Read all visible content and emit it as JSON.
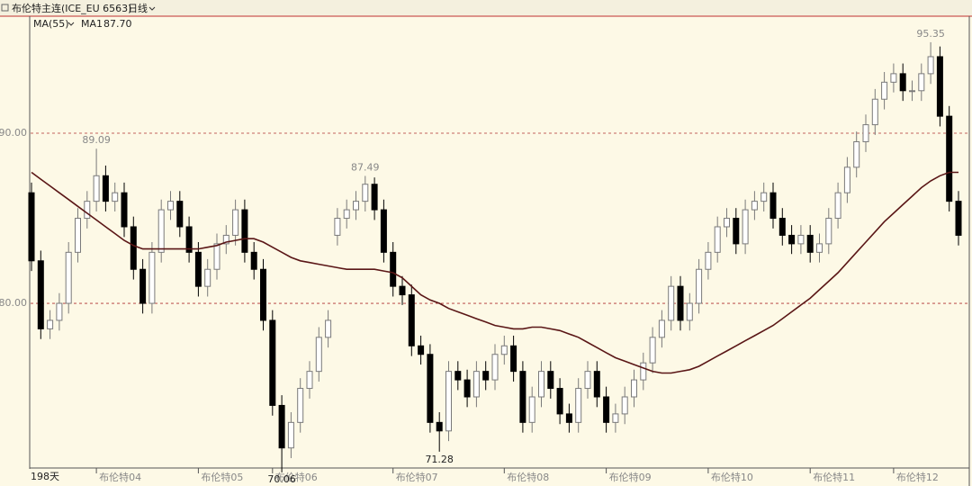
{
  "header": {
    "title": "布伦特主连(ICE_EU 6563)",
    "period": "日线"
  },
  "chart_data": {
    "type": "candlestick",
    "indicator": "MA(55)",
    "days_label": "198天",
    "up_color": "#ffffff",
    "up_edge": "#7a7a7a",
    "down_color": "#000000",
    "categories": [
      null,
      null,
      null,
      null,
      null,
      null,
      null,
      "布伦特04",
      null,
      null,
      null,
      null,
      null,
      null,
      null,
      null,
      null,
      null,
      "布伦特05",
      null,
      null,
      null,
      null,
      null,
      null,
      null,
      "布伦特06",
      null,
      null,
      null,
      null,
      null,
      null,
      null,
      null,
      null,
      null,
      null,
      null,
      "布伦特07",
      null,
      null,
      null,
      null,
      null,
      null,
      null,
      null,
      null,
      null,
      null,
      "布伦特08",
      null,
      null,
      null,
      null,
      null,
      null,
      null,
      null,
      null,
      null,
      "布伦特09",
      null,
      null,
      null,
      null,
      null,
      null,
      null,
      null,
      null,
      null,
      "布伦特10",
      null,
      null,
      null,
      null,
      null,
      null,
      null,
      null,
      null,
      null,
      "布伦特11",
      null,
      null,
      null,
      null,
      null,
      null,
      null,
      null,
      "布伦特12",
      null,
      null,
      null,
      null,
      null,
      null,
      null
    ],
    "open": [
      86.5,
      82.5,
      78.5,
      79,
      80,
      83,
      85,
      86,
      87.5,
      86,
      86.5,
      84.5,
      82,
      80,
      83,
      85.5,
      86,
      84.5,
      83,
      81,
      82,
      83.5,
      84,
      85.5,
      83,
      82,
      79,
      74,
      71.5,
      73,
      75,
      76,
      78,
      84,
      85,
      85.5,
      86,
      87,
      85.5,
      83,
      81,
      80.5,
      77.5,
      77,
      73,
      72.5,
      76,
      75.5,
      74.5,
      76,
      75.5,
      77,
      77.5,
      76,
      73,
      74.5,
      76,
      75,
      73.5,
      73,
      75,
      76,
      74.5,
      73,
      73.5,
      74.5,
      75.5,
      76.5,
      78,
      79,
      81,
      79,
      80,
      82,
      83,
      84.5,
      85,
      83.5,
      85.5,
      86,
      86.5,
      85,
      84,
      83.5,
      84,
      83,
      83.5,
      85,
      86.5,
      88,
      89.5,
      90.5,
      92,
      93,
      93.5,
      92.5,
      92.5,
      93.5,
      94.5,
      91,
      86
    ],
    "high": [
      87.1,
      83.1,
      79.6,
      80.6,
      83.6,
      85.6,
      86.6,
      89.09,
      88.1,
      87.1,
      87.1,
      85.1,
      82.6,
      83.6,
      86.1,
      86.6,
      86.6,
      85.1,
      83.6,
      82.6,
      84.1,
      84.6,
      86.1,
      86.1,
      83.6,
      82.6,
      79.6,
      74.6,
      73.6,
      75.6,
      76.6,
      78.6,
      79.6,
      85.6,
      86.1,
      86.6,
      87.49,
      87.4,
      86.1,
      83.6,
      81.6,
      81.1,
      78.1,
      77.6,
      73.6,
      76.6,
      76.6,
      76.1,
      76.6,
      76.6,
      77.6,
      78.1,
      78.1,
      76.6,
      75.1,
      76.6,
      76.6,
      75.6,
      74.1,
      75.6,
      76.6,
      76.6,
      75.1,
      74.1,
      75.1,
      76.1,
      77.1,
      78.6,
      79.6,
      81.6,
      81.6,
      80.6,
      82.6,
      83.6,
      85.1,
      85.6,
      85.6,
      86.1,
      86.6,
      87.1,
      87.1,
      85.6,
      84.6,
      84.6,
      84.6,
      84.1,
      85.6,
      87.1,
      88.6,
      90.1,
      91.1,
      92.6,
      93.6,
      94.1,
      94.1,
      93.1,
      94.1,
      95.35,
      95.1,
      91.6,
      86.6
    ],
    "low": [
      81.9,
      77.9,
      77.9,
      78.4,
      79.4,
      82.4,
      84.4,
      85.4,
      85.4,
      85.4,
      83.9,
      81.4,
      79.4,
      79.4,
      82.4,
      84.9,
      83.9,
      82.4,
      80.4,
      80.4,
      81.4,
      82.9,
      83.4,
      82.4,
      81.4,
      78.4,
      73.4,
      70.06,
      70.9,
      72.4,
      74.4,
      75.4,
      77.4,
      83.4,
      84.4,
      84.9,
      85.4,
      84.9,
      82.4,
      80.4,
      79.9,
      76.9,
      76.4,
      72.4,
      71.28,
      71.9,
      74.9,
      73.9,
      73.9,
      74.9,
      74.9,
      76.4,
      75.4,
      72.4,
      72.4,
      73.9,
      74.4,
      72.9,
      72.4,
      72.4,
      74.4,
      73.9,
      72.4,
      72.4,
      72.9,
      73.9,
      74.9,
      75.9,
      77.4,
      78.4,
      78.4,
      78.4,
      79.4,
      81.4,
      82.4,
      83.9,
      82.9,
      82.9,
      84.9,
      85.4,
      84.4,
      83.4,
      82.9,
      82.9,
      82.4,
      82.4,
      82.9,
      84.4,
      85.9,
      87.4,
      88.9,
      89.9,
      91.4,
      92.4,
      91.9,
      91.9,
      91.9,
      92.9,
      90.4,
      85.4,
      83.4
    ],
    "close": [
      82.5,
      78.5,
      79,
      80,
      83,
      85,
      86,
      87.5,
      86,
      86.5,
      84.5,
      82,
      80,
      83,
      85.5,
      86,
      84.5,
      83,
      81,
      82,
      83.5,
      84,
      85.5,
      83,
      82,
      79,
      74,
      71.5,
      73,
      75,
      76,
      78,
      79,
      85,
      85.5,
      86,
      87,
      85.5,
      83,
      81,
      80.5,
      77.5,
      77,
      73,
      72.5,
      76,
      75.5,
      74.5,
      76,
      75.5,
      77,
      77.5,
      76,
      73,
      74.5,
      76,
      75,
      73.5,
      73,
      75,
      76,
      74.5,
      73,
      73.5,
      74.5,
      75.5,
      76.5,
      78,
      79,
      81,
      79,
      80,
      82,
      83,
      84.5,
      85,
      83.5,
      85.5,
      86,
      86.5,
      85,
      84,
      83.5,
      84,
      83,
      83.5,
      85,
      86.5,
      88,
      89.5,
      90.5,
      92,
      93,
      93.5,
      92.5,
      92.5,
      93.5,
      94.5,
      91,
      86,
      84
    ],
    "series": [
      {
        "name": "MA1",
        "color": "#5a1616",
        "last_value_label": "87.70",
        "values": [
          87.7,
          87.3,
          86.9,
          86.5,
          86.1,
          85.7,
          85.3,
          84.9,
          84.5,
          84.1,
          83.7,
          83.4,
          83.2,
          83.2,
          83.2,
          83.2,
          83.2,
          83.2,
          83.2,
          83.3,
          83.4,
          83.6,
          83.7,
          83.8,
          83.8,
          83.6,
          83.3,
          83.0,
          82.7,
          82.5,
          82.4,
          82.3,
          82.2,
          82.1,
          82.0,
          82.0,
          82.0,
          82.0,
          81.9,
          81.8,
          81.5,
          81.0,
          80.5,
          80.2,
          80.0,
          79.7,
          79.5,
          79.3,
          79.1,
          78.9,
          78.7,
          78.6,
          78.5,
          78.5,
          78.6,
          78.6,
          78.5,
          78.4,
          78.2,
          78.0,
          77.7,
          77.4,
          77.1,
          76.8,
          76.6,
          76.4,
          76.2,
          76.0,
          75.9,
          75.9,
          76.0,
          76.1,
          76.3,
          76.6,
          76.9,
          77.2,
          77.5,
          77.8,
          78.1,
          78.4,
          78.7,
          79.1,
          79.5,
          79.9,
          80.3,
          80.8,
          81.3,
          81.8,
          82.4,
          83.0,
          83.6,
          84.2,
          84.8,
          85.3,
          85.8,
          86.3,
          86.8,
          87.2,
          87.5,
          87.7,
          87.7
        ]
      }
    ],
    "ylim": [
      70.32,
      96.88
    ],
    "yticks": [
      {
        "value": 80,
        "label": "80.00"
      },
      {
        "value": 90,
        "label": "90.00"
      }
    ],
    "grid": true,
    "grid_color": "#b03030"
  }
}
